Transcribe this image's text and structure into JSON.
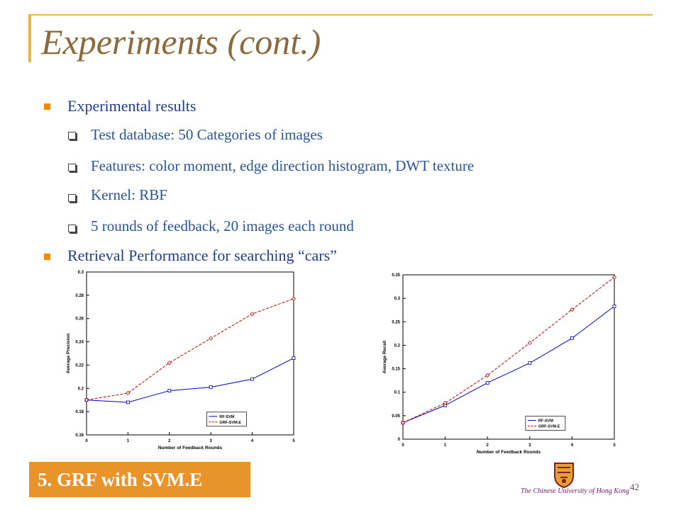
{
  "slide": {
    "title": "Experiments (cont.)",
    "bullets": [
      {
        "text": "Experimental results",
        "sub": [
          "Test database: 50 Categories of images",
          "Features: color moment, edge direction histogram, DWT texture",
          "Kernel: RBF",
          "5 rounds of feedback, 20 images each round"
        ]
      },
      {
        "text": "Retrieval Performance for searching “cars”",
        "sub": []
      }
    ],
    "footer": "5. GRF with SVM.E",
    "page_number": "42",
    "university": "The Chinese University of Hong Kong",
    "colors": {
      "title": "#8c6a3c",
      "bullet": "#f08a00",
      "text": "#1f3f8c",
      "footer": "#e8942a",
      "rf": "#0000cc",
      "grf": "#cc0000"
    }
  },
  "chart_data": [
    {
      "type": "line",
      "x": [
        0,
        1,
        2,
        3,
        4,
        5
      ],
      "xlabel": "Number of Feedback Rounds",
      "ylabel": "Average Precision",
      "xlim": [
        0,
        5
      ],
      "ylim": [
        0.16,
        0.3
      ],
      "yticks": [
        "0.16",
        "0.18",
        "0.2",
        "0.22",
        "0.24",
        "0.26",
        "0.28",
        "0.3"
      ],
      "xticks": [
        "0",
        "1",
        "2",
        "3",
        "4",
        "5"
      ],
      "legend_position": "bottom-right",
      "series": [
        {
          "name": "RF-SVM",
          "values": [
            0.19,
            0.188,
            0.198,
            0.201,
            0.208,
            0.226
          ]
        },
        {
          "name": "GRF-SVM.E",
          "values": [
            0.19,
            0.196,
            0.222,
            0.243,
            0.264,
            0.277
          ]
        }
      ]
    },
    {
      "type": "line",
      "x": [
        0,
        1,
        2,
        3,
        4,
        5
      ],
      "xlabel": "Number of Feedback Rounds",
      "ylabel": "Average Recall",
      "xlim": [
        0,
        5
      ],
      "ylim": [
        0,
        0.35
      ],
      "yticks": [
        "0",
        "0.05",
        "0.1",
        "0.15",
        "0.2",
        "0.25",
        "0.3",
        "0.35"
      ],
      "xticks": [
        "0",
        "1",
        "2",
        "3",
        "4",
        "5"
      ],
      "legend_position": "bottom-right",
      "series": [
        {
          "name": "RF-SVM",
          "values": [
            0.035,
            0.072,
            0.12,
            0.162,
            0.215,
            0.283
          ]
        },
        {
          "name": "GRF-SVM.E",
          "values": [
            0.035,
            0.077,
            0.136,
            0.205,
            0.276,
            0.345
          ]
        }
      ]
    }
  ]
}
